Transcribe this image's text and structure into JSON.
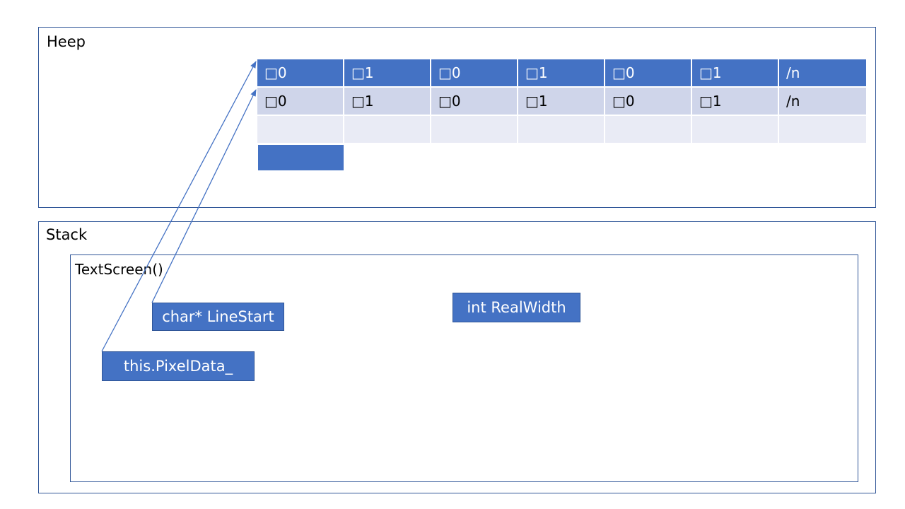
{
  "heap": {
    "title": "Heep",
    "rows": [
      {
        "style": "header",
        "cells": [
          "□0",
          "□1",
          "□0",
          "□1",
          "□0",
          "□1",
          "/n"
        ]
      },
      {
        "style": "body",
        "cells": [
          "□0",
          "□1",
          "□0",
          "□1",
          "□0",
          "□1",
          "/n"
        ]
      },
      {
        "style": "empty",
        "cells": [
          "",
          "",
          "",
          "",
          "",
          "",
          ""
        ]
      }
    ]
  },
  "stack": {
    "title": "Stack",
    "frame": {
      "title": "TextScreen()",
      "boxes": {
        "line_start": "char* LineStart",
        "real_width": "int RealWidth",
        "pixel_data": "this.PixelData_"
      }
    }
  },
  "colors": {
    "accent": "#4472c4",
    "border": "#2f5597",
    "row_body": "#cfd5ea",
    "row_empty": "#e9ebf5"
  }
}
